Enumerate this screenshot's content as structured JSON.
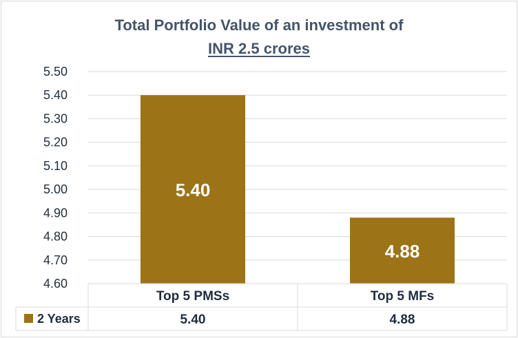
{
  "chart_data": {
    "type": "bar",
    "title_line1": "Total Portfolio Value of an investment of",
    "title_line2": "INR 2.5 crores",
    "categories": [
      "Top 5 PMSs",
      "Top 5 MFs"
    ],
    "series": [
      {
        "name": "2 Years",
        "values": [
          5.4,
          4.88
        ],
        "labels": [
          "5.40",
          "4.88"
        ]
      }
    ],
    "ylim": [
      4.6,
      5.5
    ],
    "yticks": [
      "4.60",
      "4.70",
      "4.80",
      "4.90",
      "5.00",
      "5.10",
      "5.20",
      "5.30",
      "5.40",
      "5.50"
    ],
    "grid": true,
    "data_table": true,
    "colors": {
      "bar": "#9c7417",
      "gridline": "#d9d9d9",
      "title": "#44546a",
      "text": "#1f2d3d"
    }
  }
}
